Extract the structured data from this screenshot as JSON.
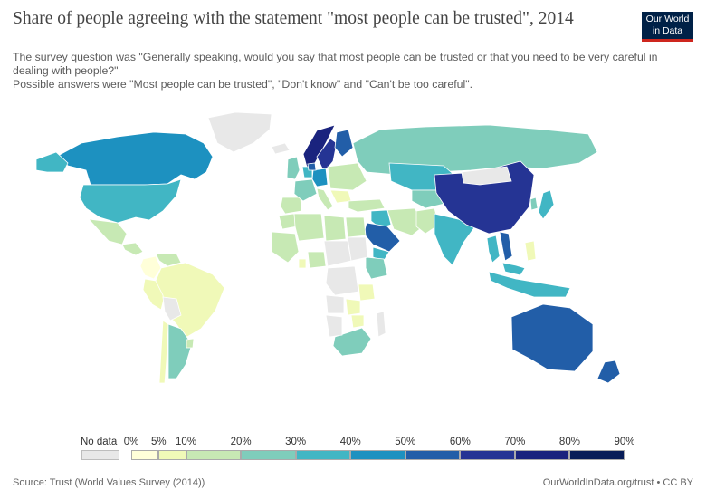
{
  "header": {
    "title": "Share of people agreeing with the statement \"most people can be trusted\", 2014",
    "subtitle_line1": "The survey question was \"Generally speaking, would you say that most people can be trusted or that you need to be very careful in dealing with people?\"",
    "subtitle_line2": " Possible answers were \"Most people can be trusted\", \"Don't know\" and \"Can't be too careful\"."
  },
  "logo": {
    "line1": "Our World",
    "line2": "in Data",
    "colors": {
      "bg": "#002147",
      "accent": "#ce261e"
    }
  },
  "legend": {
    "no_data_label": "No data",
    "no_data_color": "#e8e8e8",
    "bins": [
      {
        "from": 0,
        "to": 5,
        "color": "#ffffd9"
      },
      {
        "from": 5,
        "to": 10,
        "color": "#f0f9b8"
      },
      {
        "from": 10,
        "to": 20,
        "color": "#c7e9b4"
      },
      {
        "from": 20,
        "to": 30,
        "color": "#7fcdbb"
      },
      {
        "from": 30,
        "to": 40,
        "color": "#41b6c4"
      },
      {
        "from": 40,
        "to": 50,
        "color": "#1d91c0"
      },
      {
        "from": 50,
        "to": 60,
        "color": "#225ea8"
      },
      {
        "from": 60,
        "to": 70,
        "color": "#253494"
      },
      {
        "from": 70,
        "to": 80,
        "color": "#1a237e"
      },
      {
        "from": 80,
        "to": 90,
        "color": "#081d58"
      }
    ],
    "tick_labels": [
      "0%",
      "5%",
      "10%",
      "20%",
      "30%",
      "40%",
      "50%",
      "60%",
      "70%",
      "80%",
      "90%"
    ]
  },
  "chart_data": {
    "type": "choropleth",
    "unit": "%",
    "regions": [
      {
        "name": "Canada",
        "bin": 5
      },
      {
        "name": "United States",
        "bin": 4
      },
      {
        "name": "Alaska",
        "bin": 4
      },
      {
        "name": "Greenland",
        "bin": null
      },
      {
        "name": "Mexico",
        "bin": 2
      },
      {
        "name": "Central America",
        "bin": 2
      },
      {
        "name": "Colombia",
        "bin": 0
      },
      {
        "name": "Venezuela",
        "bin": 2
      },
      {
        "name": "Peru",
        "bin": 1
      },
      {
        "name": "Brazil",
        "bin": 1
      },
      {
        "name": "Bolivia",
        "bin": null
      },
      {
        "name": "Chile",
        "bin": 1
      },
      {
        "name": "Argentina",
        "bin": 3
      },
      {
        "name": "Uruguay",
        "bin": 2
      },
      {
        "name": "Iceland",
        "bin": null
      },
      {
        "name": "Norway",
        "bin": 8
      },
      {
        "name": "Sweden",
        "bin": 7
      },
      {
        "name": "Finland",
        "bin": 6
      },
      {
        "name": "United Kingdom",
        "bin": 3
      },
      {
        "name": "Western Europe",
        "bin": 4
      },
      {
        "name": "Germany",
        "bin": 5
      },
      {
        "name": "Netherlands",
        "bin": 6
      },
      {
        "name": "Spain",
        "bin": 2
      },
      {
        "name": "France",
        "bin": 3
      },
      {
        "name": "Italy",
        "bin": 2
      },
      {
        "name": "Eastern Europe",
        "bin": 2
      },
      {
        "name": "Balkans",
        "bin": 1
      },
      {
        "name": "Russia",
        "bin": 3
      },
      {
        "name": "Turkey",
        "bin": 2
      },
      {
        "name": "Kazakhstan",
        "bin": 4
      },
      {
        "name": "Central Asia",
        "bin": 3
      },
      {
        "name": "Iran",
        "bin": 2
      },
      {
        "name": "Iraq",
        "bin": 4
      },
      {
        "name": "Saudi Arabia",
        "bin": 6
      },
      {
        "name": "Yemen",
        "bin": 4
      },
      {
        "name": "Pakistan",
        "bin": 2
      },
      {
        "name": "India",
        "bin": 4
      },
      {
        "name": "China",
        "bin": 7
      },
      {
        "name": "Mongolia",
        "bin": null
      },
      {
        "name": "Japan",
        "bin": 4
      },
      {
        "name": "South Korea",
        "bin": 3
      },
      {
        "name": "Thailand",
        "bin": 4
      },
      {
        "name": "Vietnam",
        "bin": 6
      },
      {
        "name": "Philippines",
        "bin": 1
      },
      {
        "name": "Malaysia",
        "bin": 4
      },
      {
        "name": "Indonesia",
        "bin": 4
      },
      {
        "name": "Australia",
        "bin": 6
      },
      {
        "name": "New Zealand",
        "bin": 6
      },
      {
        "name": "Morocco",
        "bin": 2
      },
      {
        "name": "Algeria",
        "bin": 2
      },
      {
        "name": "Libya",
        "bin": 2
      },
      {
        "name": "Egypt",
        "bin": 2
      },
      {
        "name": "West Africa",
        "bin": 2
      },
      {
        "name": "Ghana",
        "bin": 1
      },
      {
        "name": "Nigeria",
        "bin": 2
      },
      {
        "name": "Ethiopia",
        "bin": 3
      },
      {
        "name": "Tanzania",
        "bin": 1
      },
      {
        "name": "Zambia",
        "bin": 1
      },
      {
        "name": "Zimbabwe",
        "bin": 1
      },
      {
        "name": "South Africa",
        "bin": 3
      },
      {
        "name": "Central Africa",
        "bin": null
      },
      {
        "name": "Sudan",
        "bin": null
      },
      {
        "name": "DR Congo",
        "bin": null
      },
      {
        "name": "Angola",
        "bin": null
      },
      {
        "name": "Namibia",
        "bin": null
      },
      {
        "name": "Madagascar",
        "bin": null
      }
    ]
  },
  "footer": {
    "source": "Source: Trust (World Values Survey (2014))",
    "credit": "OurWorldInData.org/trust • CC BY"
  }
}
